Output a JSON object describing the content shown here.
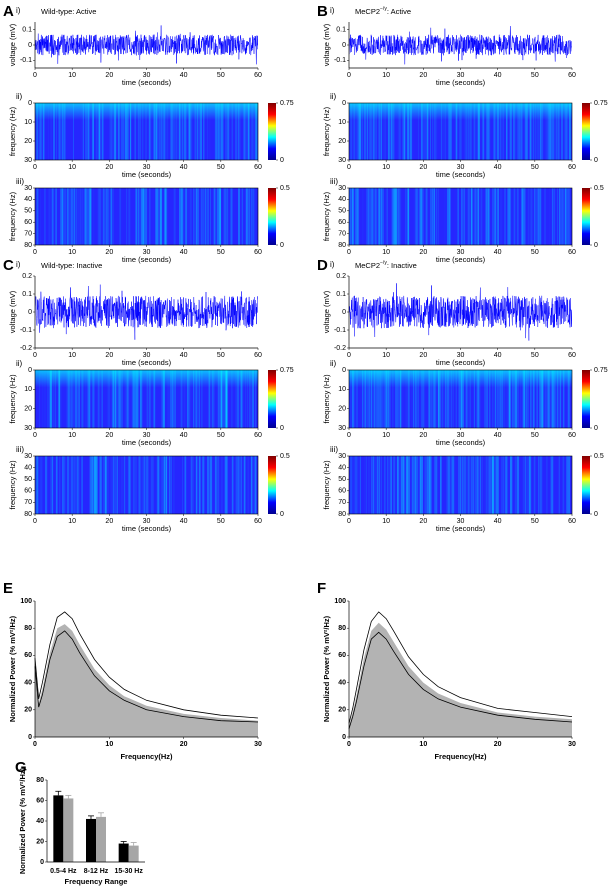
{
  "chart_data": [
    {
      "type": "trace",
      "panel": "A",
      "label": "i)",
      "title": [
        {
          "text": "Wild-type: Active"
        }
      ],
      "xlabel": "time (seconds)",
      "ylabel": "voltage (mV)",
      "xlim": [
        0,
        60
      ],
      "xticks": [
        0,
        10,
        20,
        30,
        40,
        50,
        60
      ],
      "ylim": [
        -0.15,
        0.15
      ],
      "yticks": [
        -0.1,
        0,
        0.1
      ],
      "color": "#0000ff"
    },
    {
      "type": "spectrogram",
      "label": "ii)",
      "xlabel": "time (seconds)",
      "ylabel": "frequency (Hz)",
      "xlim": [
        0,
        60
      ],
      "xticks": [
        0,
        10,
        20,
        30,
        40,
        50,
        60
      ],
      "ylim": [
        30,
        0
      ],
      "yticks": [
        0,
        10,
        20,
        30
      ],
      "clim": [
        0,
        0.75
      ],
      "cticks": [
        0,
        0.75
      ],
      "colormap": [
        "#00008f",
        "#0000ff",
        "#00ffff",
        "#ffff00",
        "#ff0000",
        "#800000"
      ]
    },
    {
      "type": "spectrogram",
      "label": "iii)",
      "xlabel": "time (seconds)",
      "ylabel": "frequency (Hz)",
      "xlim": [
        0,
        60
      ],
      "xticks": [
        0,
        10,
        20,
        30,
        40,
        50,
        60
      ],
      "ylim": [
        80,
        30
      ],
      "yticks": [
        30,
        40,
        50,
        60,
        70,
        80
      ],
      "clim": [
        0,
        0.5
      ],
      "cticks": [
        0,
        0.5
      ],
      "colormap": [
        "#00008f",
        "#0000ff",
        "#00ffff",
        "#ffff00",
        "#ff0000",
        "#800000"
      ]
    },
    {
      "type": "trace",
      "panel": "B",
      "label": "i)",
      "title": [
        {
          "text": "MeCP2"
        },
        {
          "text": "−/y",
          "sup": true
        },
        {
          "text": ": Active"
        }
      ],
      "xlabel": "time (seconds)",
      "ylabel": "voltage (mV)",
      "xlim": [
        0,
        60
      ],
      "xticks": [
        0,
        10,
        20,
        30,
        40,
        50,
        60
      ],
      "ylim": [
        -0.15,
        0.15
      ],
      "yticks": [
        -0.1,
        0,
        0.1
      ],
      "color": "#0000ff"
    },
    {
      "type": "spectrogram",
      "label": "ii)",
      "xlabel": "time (seconds)",
      "ylabel": "frequency (Hz)",
      "xlim": [
        0,
        60
      ],
      "xticks": [
        0,
        10,
        20,
        30,
        40,
        50,
        60
      ],
      "ylim": [
        30,
        0
      ],
      "yticks": [
        0,
        10,
        20,
        30
      ],
      "clim": [
        0,
        0.75
      ],
      "cticks": [
        0,
        0.75
      ],
      "colormap": [
        "#00008f",
        "#0000ff",
        "#00ffff",
        "#ffff00",
        "#ff0000",
        "#800000"
      ]
    },
    {
      "type": "spectrogram",
      "label": "iii)",
      "xlabel": "time (seconds)",
      "ylabel": "frequency (Hz)",
      "xlim": [
        0,
        60
      ],
      "xticks": [
        0,
        10,
        20,
        30,
        40,
        50,
        60
      ],
      "ylim": [
        80,
        30
      ],
      "yticks": [
        30,
        40,
        50,
        60,
        70,
        80
      ],
      "clim": [
        0,
        0.5
      ],
      "cticks": [
        0,
        0.5
      ],
      "colormap": [
        "#00008f",
        "#0000ff",
        "#00ffff",
        "#ffff00",
        "#ff0000",
        "#800000"
      ]
    },
    {
      "type": "trace",
      "panel": "C",
      "label": "i)",
      "title": [
        {
          "text": "Wild-type: Inactive"
        }
      ],
      "xlabel": "time (seconds)",
      "ylabel": "voltage (mV)",
      "xlim": [
        0,
        60
      ],
      "xticks": [
        0,
        10,
        20,
        30,
        40,
        50,
        60
      ],
      "ylim": [
        -0.2,
        0.2
      ],
      "yticks": [
        -0.2,
        -0.1,
        0,
        0.1,
        0.2
      ],
      "color": "#0000ff"
    },
    {
      "type": "spectrogram",
      "label": "ii)",
      "xlabel": "time (seconds)",
      "ylabel": "frequency (Hz)",
      "xlim": [
        0,
        60
      ],
      "xticks": [
        0,
        10,
        20,
        30,
        40,
        50,
        60
      ],
      "ylim": [
        30,
        0
      ],
      "yticks": [
        0,
        10,
        20,
        30
      ],
      "clim": [
        0,
        0.75
      ],
      "cticks": [
        0,
        0.75
      ],
      "colormap": [
        "#00008f",
        "#0000ff",
        "#00ffff",
        "#ffff00",
        "#ff0000",
        "#800000"
      ]
    },
    {
      "type": "spectrogram",
      "label": "iii)",
      "xlabel": "time (seconds)",
      "ylabel": "frequency (Hz)",
      "xlim": [
        0,
        60
      ],
      "xticks": [
        0,
        10,
        20,
        30,
        40,
        50,
        60
      ],
      "ylim": [
        80,
        30
      ],
      "yticks": [
        30,
        40,
        50,
        60,
        70,
        80
      ],
      "clim": [
        0,
        0.5
      ],
      "cticks": [
        0,
        0.5
      ],
      "colormap": [
        "#00008f",
        "#0000ff",
        "#00ffff",
        "#ffff00",
        "#ff0000",
        "#800000"
      ]
    },
    {
      "type": "trace",
      "panel": "D",
      "label": "i)",
      "title": [
        {
          "text": "MeCP2"
        },
        {
          "text": "−/y",
          "sup": true
        },
        {
          "text": ": Inactive"
        }
      ],
      "xlabel": "time (seconds)",
      "ylabel": "voltage (mV)",
      "xlim": [
        0,
        60
      ],
      "xticks": [
        0,
        10,
        20,
        30,
        40,
        50,
        60
      ],
      "ylim": [
        -0.2,
        0.2
      ],
      "yticks": [
        -0.2,
        -0.1,
        0,
        0.1,
        0.2
      ],
      "color": "#0000ff"
    },
    {
      "type": "spectrogram",
      "label": "ii)",
      "xlabel": "time (seconds)",
      "ylabel": "frequency (Hz)",
      "xlim": [
        0,
        60
      ],
      "xticks": [
        0,
        10,
        20,
        30,
        40,
        50,
        60
      ],
      "ylim": [
        30,
        0
      ],
      "yticks": [
        0,
        10,
        20,
        30
      ],
      "clim": [
        0,
        0.75
      ],
      "cticks": [
        0,
        0.75
      ],
      "colormap": [
        "#00008f",
        "#0000ff",
        "#00ffff",
        "#ffff00",
        "#ff0000",
        "#800000"
      ]
    },
    {
      "type": "spectrogram",
      "label": "iii)",
      "xlabel": "time (seconds)",
      "ylabel": "frequency (Hz)",
      "xlim": [
        0,
        60
      ],
      "xticks": [
        0,
        10,
        20,
        30,
        40,
        50,
        60
      ],
      "ylim": [
        80,
        30
      ],
      "yticks": [
        30,
        40,
        50,
        60,
        70,
        80
      ],
      "clim": [
        0,
        0.5
      ],
      "cticks": [
        0,
        0.5
      ],
      "colormap": [
        "#00008f",
        "#0000ff",
        "#00ffff",
        "#ffff00",
        "#ff0000",
        "#800000"
      ]
    },
    {
      "type": "line",
      "panel": "E",
      "xlabel": "Frequency(Hz)",
      "ylabel": "Normalized Power (% mV²/Hz)",
      "x": [
        0,
        0.5,
        1,
        2,
        3,
        4,
        5,
        6,
        8,
        10,
        12,
        15,
        20,
        25,
        30
      ],
      "xlim": [
        0,
        30
      ],
      "xticks": [
        0,
        10,
        20,
        30
      ],
      "ylim": [
        0,
        100
      ],
      "yticks": [
        0,
        20,
        40,
        60,
        80,
        100
      ],
      "series": [
        {
          "color": "#b3b3b3",
          "fill": true,
          "values": [
            55,
            25,
            35,
            62,
            80,
            83,
            78,
            68,
            50,
            38,
            30,
            23,
            17,
            14,
            12
          ]
        },
        {
          "color": "#000000",
          "values": [
            58,
            28,
            40,
            68,
            88,
            92,
            87,
            76,
            57,
            44,
            35,
            27,
            20,
            16,
            14
          ]
        },
        {
          "color": "#000000",
          "values": [
            52,
            22,
            31,
            57,
            74,
            78,
            72,
            62,
            45,
            34,
            27,
            20,
            15,
            12,
            11
          ]
        }
      ]
    },
    {
      "type": "line",
      "panel": "F",
      "xlabel": "Frequency(Hz)",
      "ylabel": "Normalized Power (% mV²/Hz)",
      "x": [
        0,
        0.5,
        1,
        2,
        3,
        4,
        5,
        6,
        8,
        10,
        12,
        15,
        20,
        25,
        30
      ],
      "xlim": [
        0,
        30
      ],
      "xticks": [
        0,
        10,
        20,
        30
      ],
      "ylim": [
        0,
        100
      ],
      "yticks": [
        0,
        20,
        40,
        60,
        80,
        100
      ],
      "series": [
        {
          "color": "#b3b3b3",
          "fill": true,
          "values": [
            8,
            18,
            30,
            58,
            78,
            84,
            79,
            70,
            52,
            40,
            32,
            25,
            18,
            15,
            13
          ]
        },
        {
          "color": "#000000",
          "values": [
            10,
            21,
            35,
            64,
            85,
            92,
            87,
            78,
            59,
            46,
            37,
            29,
            21,
            18,
            15
          ]
        },
        {
          "color": "#000000",
          "values": [
            6,
            15,
            26,
            52,
            72,
            77,
            72,
            63,
            46,
            35,
            28,
            22,
            16,
            13,
            11
          ]
        }
      ]
    },
    {
      "type": "bar",
      "panel": "G",
      "xlabel": "Frequency Range",
      "ylabel": "Normalized Power (% mV²/Hz)",
      "categories": [
        "0.5-4 Hz",
        "8-12 Hz",
        "15-30 Hz"
      ],
      "ylim": [
        0,
        80
      ],
      "yticks": [
        0,
        20,
        40,
        60,
        80
      ],
      "series": [
        {
          "color": "#000000",
          "values": [
            65,
            42,
            18
          ],
          "errors": [
            4,
            3,
            2
          ]
        },
        {
          "color": "#a6a6a6",
          "values": [
            62,
            44,
            16
          ],
          "errors": [
            3,
            4,
            3
          ]
        }
      ]
    }
  ]
}
